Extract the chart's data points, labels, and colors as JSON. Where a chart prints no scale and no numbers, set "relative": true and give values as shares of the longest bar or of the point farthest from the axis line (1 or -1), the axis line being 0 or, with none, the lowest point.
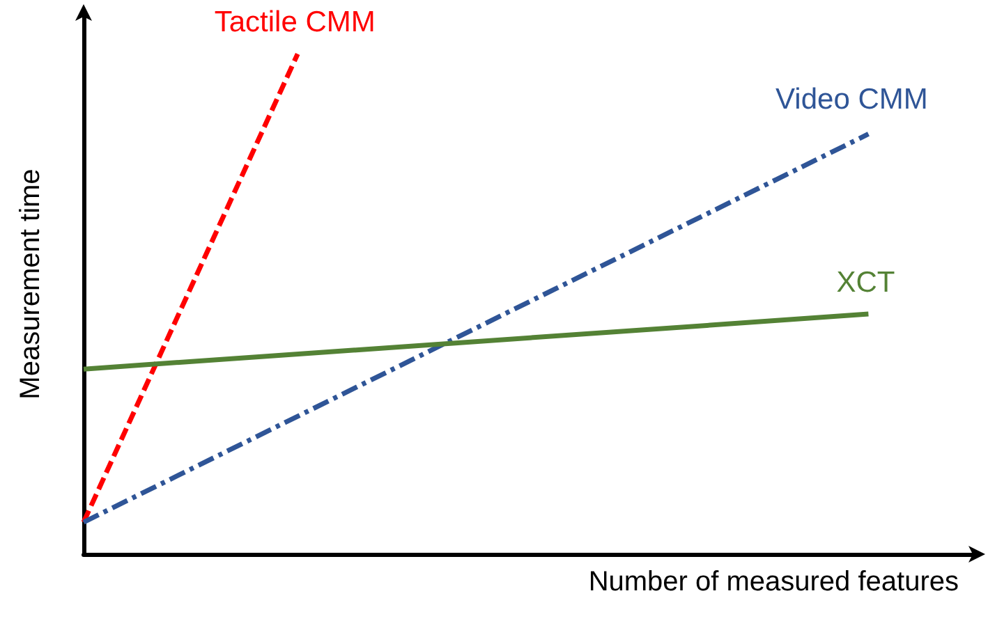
{
  "chart_data": {
    "type": "line",
    "relative": true,
    "xlabel": "Number of measured features",
    "ylabel": "Measurement time",
    "tick_labels": false,
    "grid": false,
    "legend": false,
    "marker": "none",
    "categories": [
      null,
      null,
      null,
      null,
      null,
      null,
      null,
      null,
      null,
      null,
      null,
      null,
      null,
      null,
      null,
      null,
      null,
      null,
      null,
      null,
      null,
      null,
      null,
      null,
      null,
      null
    ],
    "series": [
      {
        "name": "Tactile CMM",
        "color": "#ff0000",
        "line_style": "dashed",
        "values": [
          0.064,
          null,
          null,
          null,
          null,
          null,
          1,
          null,
          null,
          null,
          null,
          null,
          null,
          null,
          null,
          null,
          null,
          null,
          null,
          null,
          null,
          null,
          null,
          null,
          null,
          null
        ]
      },
      {
        "name": "Video CMM",
        "color": "#2f5597",
        "line_style": "dashdot",
        "values": [
          0.064,
          null,
          null,
          null,
          null,
          null,
          null,
          null,
          null,
          null,
          null,
          null,
          null,
          null,
          null,
          null,
          null,
          null,
          null,
          null,
          null,
          null,
          0.84,
          null,
          null,
          null
        ]
      },
      {
        "name": "XCT",
        "color": "#548235",
        "line_style": "solid",
        "values": [
          0.37,
          null,
          null,
          null,
          null,
          null,
          null,
          null,
          null,
          null,
          null,
          null,
          null,
          null,
          null,
          null,
          null,
          null,
          null,
          null,
          null,
          null,
          0.48,
          null,
          null,
          null
        ]
      }
    ]
  }
}
